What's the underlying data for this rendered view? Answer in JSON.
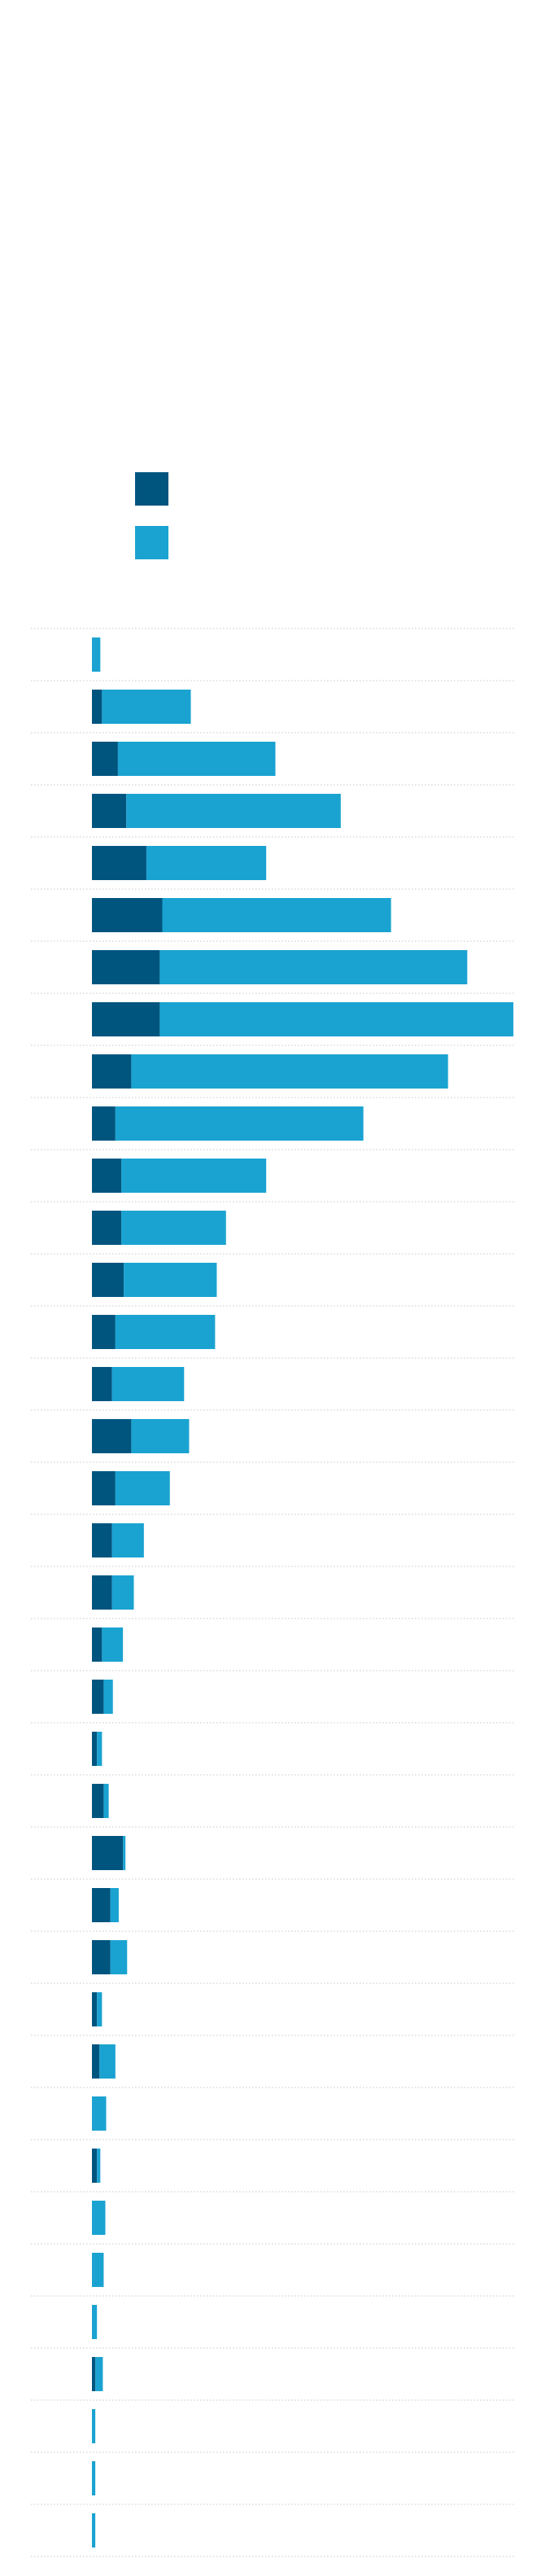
{
  "chart_data": {
    "type": "bar",
    "orientation": "horizontal",
    "stacked": true,
    "title": "",
    "subtitle": "",
    "xlabel": "",
    "ylabel": "",
    "categories": [
      "",
      "",
      "",
      "",
      "",
      "",
      "",
      "",
      "",
      "",
      "",
      "",
      "",
      "",
      "",
      "",
      "",
      "",
      "",
      "",
      "",
      "",
      "",
      "",
      "",
      "",
      "",
      "",
      "",
      "",
      "",
      "",
      "",
      "",
      "",
      "",
      ""
    ],
    "series": [
      {
        "name": "",
        "color": "#00557f",
        "values": [
          0.0,
          1.2,
          3.1,
          4.1,
          6.5,
          8.4,
          8.1,
          8.1,
          4.7,
          2.8,
          3.5,
          3.5,
          3.8,
          2.8,
          2.4,
          4.7,
          2.8,
          2.4,
          2.4,
          1.2,
          1.4,
          0.6,
          1.4,
          3.7,
          2.2,
          2.2,
          0.6,
          0.9,
          0.0,
          0.6,
          0.0,
          0.0,
          0.0,
          0.4,
          0.0,
          0.0,
          0.0
        ]
      },
      {
        "name": "",
        "color": "#1aa3d1",
        "values": [
          1.0,
          10.6,
          18.8,
          25.6,
          14.3,
          27.3,
          36.7,
          42.2,
          37.8,
          29.6,
          17.3,
          12.5,
          11.1,
          11.9,
          8.6,
          6.9,
          6.5,
          3.8,
          2.6,
          2.5,
          1.1,
          0.6,
          0.6,
          0.3,
          1.0,
          2.0,
          0.6,
          1.9,
          1.7,
          0.4,
          1.6,
          1.4,
          0.6,
          0.9,
          0.4,
          0.4,
          0.4
        ]
      }
    ],
    "xlim": [
      0,
      50.5
    ],
    "grid": true,
    "legend": {
      "placement": "top-left"
    }
  }
}
